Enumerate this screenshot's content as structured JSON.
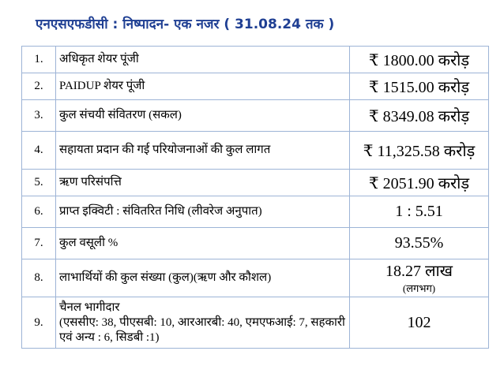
{
  "title": "एनएसएफडीसी : निष्पादन- एक नजर ( 31.08.24 तक )",
  "rows": [
    {
      "sn": "1.",
      "desc": "अधिकृत शेयर पूंजी",
      "value": "₹ 1800.00 करोड़"
    },
    {
      "sn": "2.",
      "desc": "PAIDUP शेयर पूंजी",
      "value": "₹ 1515.00 करोड़"
    },
    {
      "sn": "3.",
      "desc": "कुल संचयी संवितरण (सकल)",
      "value": "₹ 8349.08 करोड़"
    },
    {
      "sn": "4.",
      "desc": "सहायता प्रदान की गई परियोजनाओं की कुल लागत",
      "value": "₹ 11,325.58 करोड़"
    },
    {
      "sn": "5.",
      "desc": "ऋण परिसंपत्ति",
      "value": "₹ 2051.90 करोड़"
    },
    {
      "sn": "6.",
      "desc": "प्राप्त इक्विटी : संवितरित निधि (लीवरेज अनुपात)",
      "value": "1 : 5.51"
    },
    {
      "sn": "7.",
      "desc": "कुल वसूली %",
      "value": "93.55%"
    },
    {
      "sn": "8.",
      "desc": "लाभार्थियों की कुल संख्या (कुल)(ऋण और कौशल)",
      "value": "18.27 लाख",
      "value_sub": "(लगभग)"
    },
    {
      "sn": "9.",
      "desc": "चैनल भागीदार",
      "desc_line2": "(एससीए: 38, पीएसबी: 10, आरआरबी: 40, एमएफआई: 7, सहकारी एवं अन्य : 6, सिडबी :1)",
      "value": "102"
    }
  ],
  "colors": {
    "title": "#1f3f93",
    "border": "#9db4d6"
  }
}
